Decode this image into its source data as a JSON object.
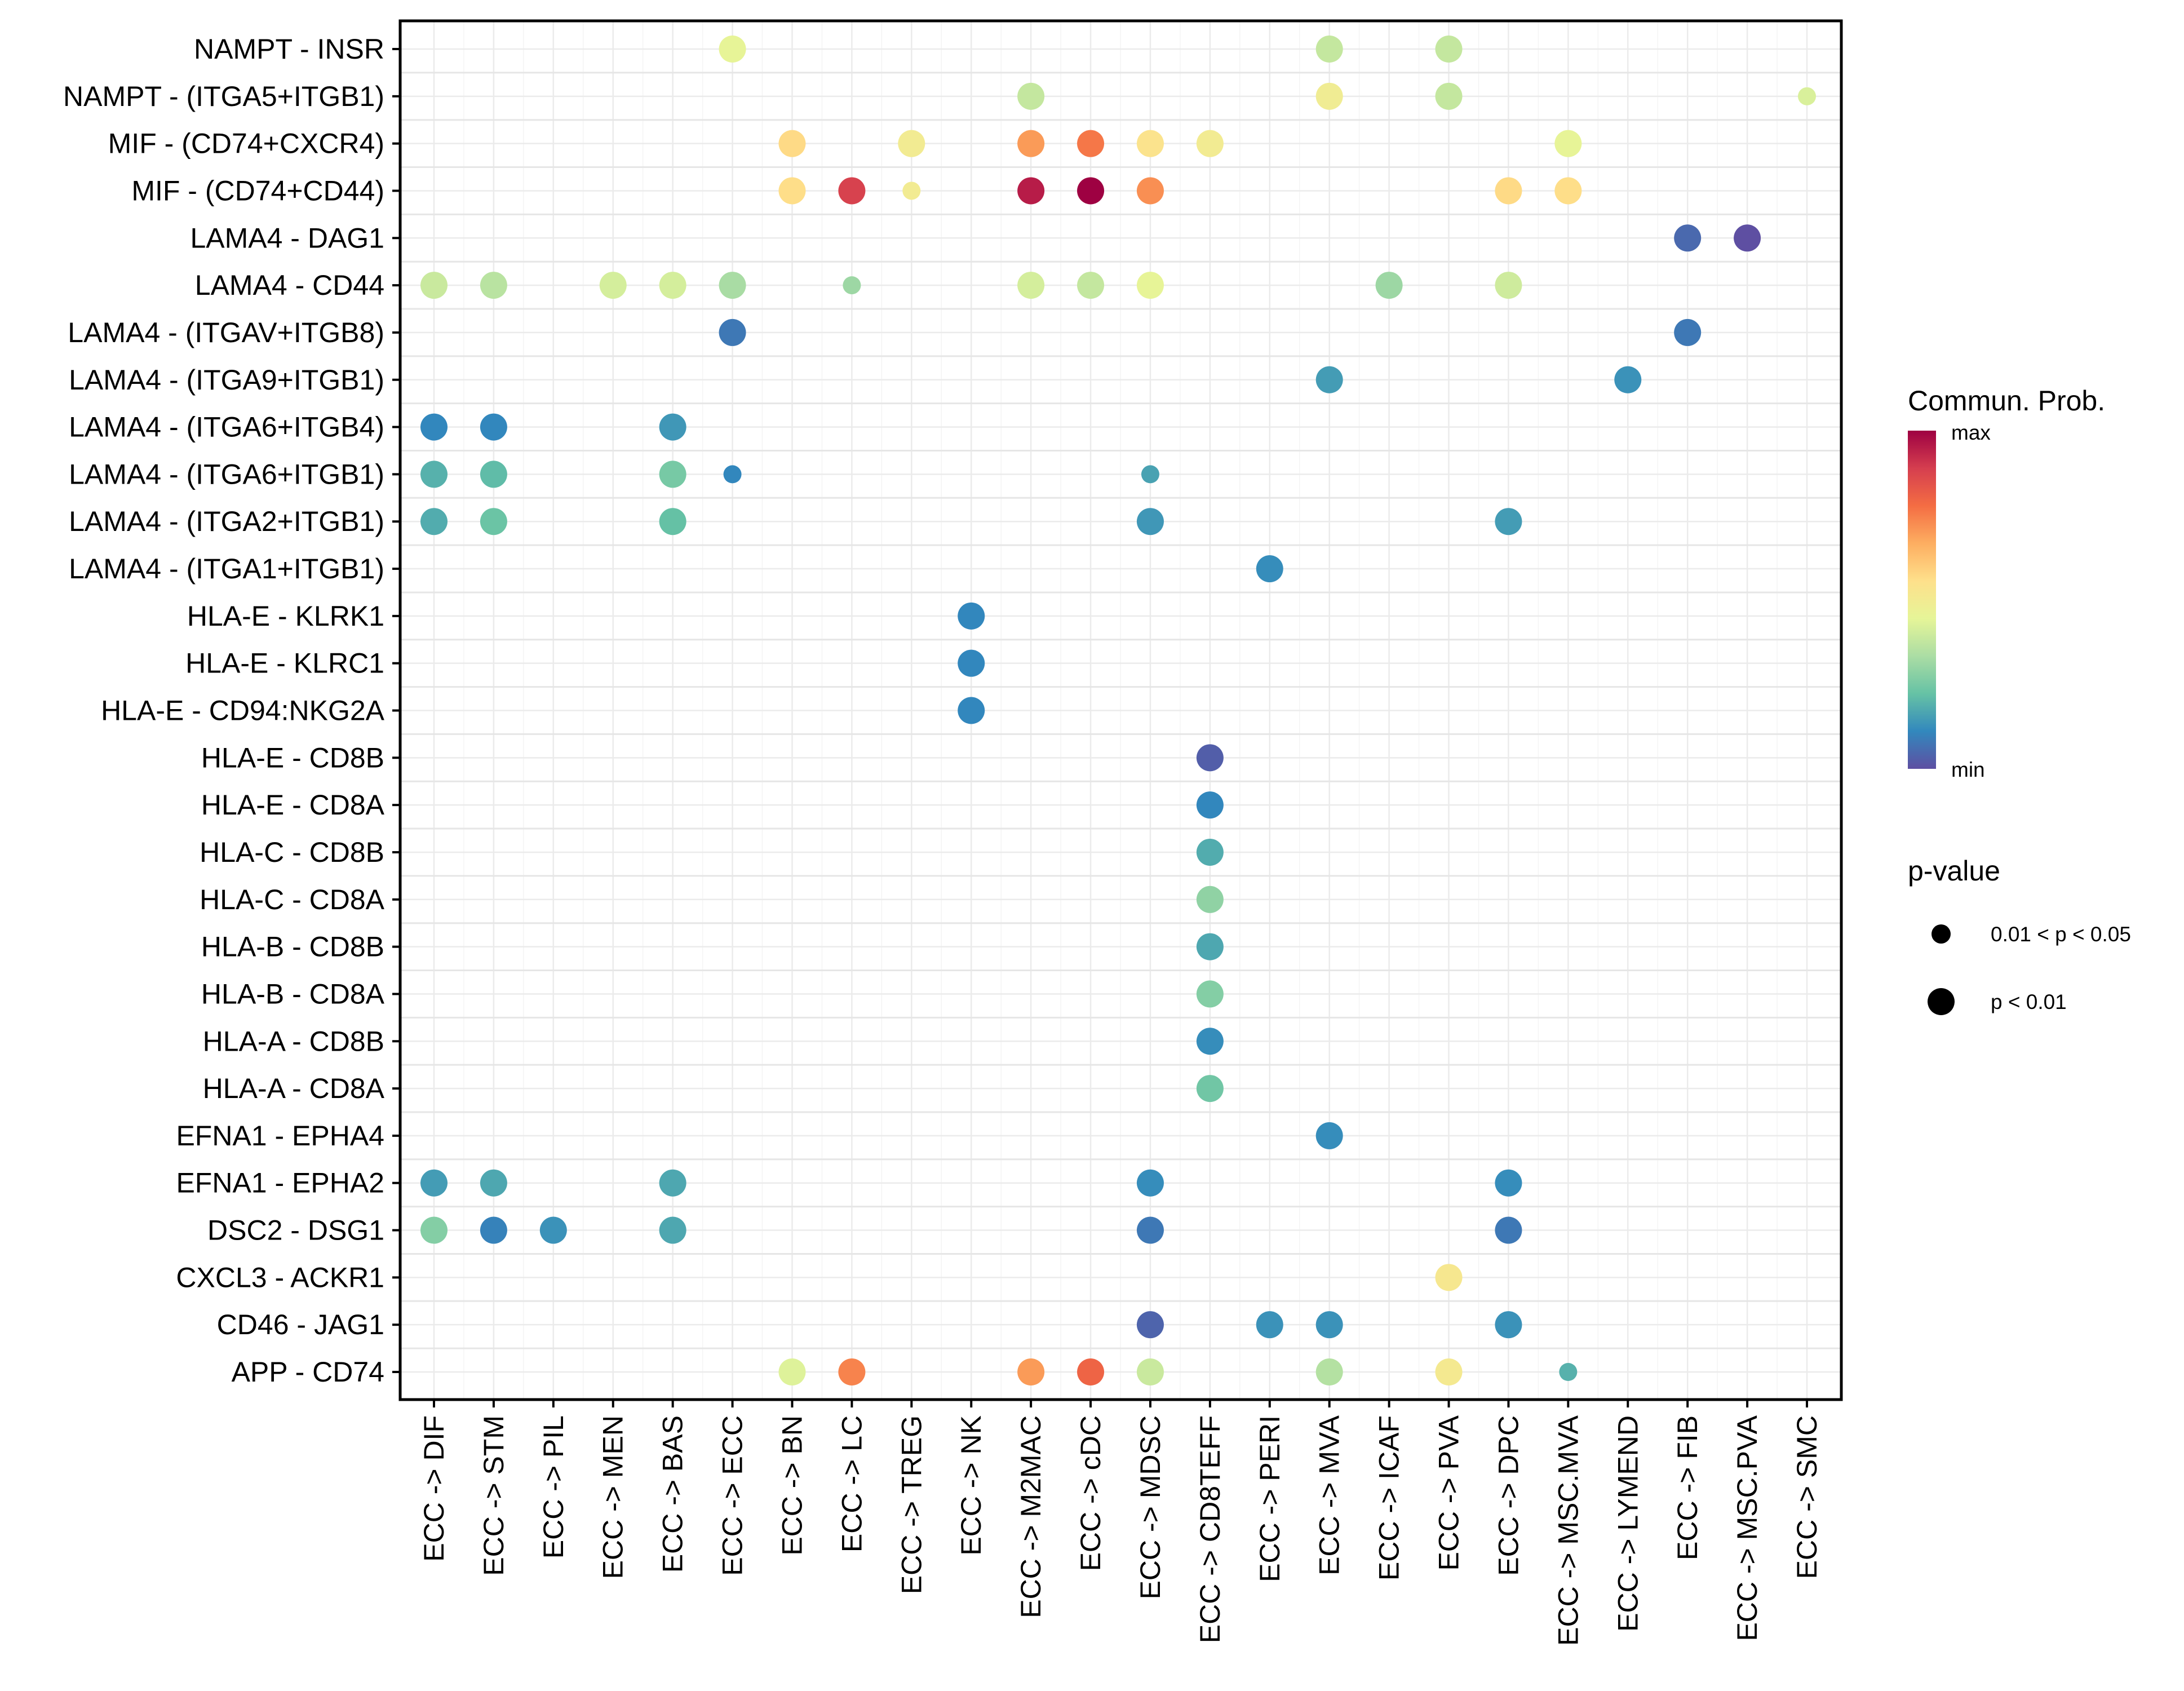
{
  "chart_data": {
    "type": "scatter",
    "subtype": "bubble-dot-plot",
    "title": "",
    "xlabel": "",
    "ylabel": "",
    "grid": true,
    "legend_position": "right",
    "x": [
      "ECC -> DIF",
      "ECC -> STM",
      "ECC -> PIL",
      "ECC -> MEN",
      "ECC -> BAS",
      "ECC -> ECC",
      "ECC -> BN",
      "ECC -> LC",
      "ECC -> TREG",
      "ECC -> NK",
      "ECC -> M2MAC",
      "ECC -> cDC",
      "ECC -> MDSC",
      "ECC -> CD8TEFF",
      "ECC -> PERI",
      "ECC -> MVA",
      "ECC -> ICAF",
      "ECC -> PVA",
      "ECC -> DPC",
      "ECC -> MSC.MVA",
      "ECC -> LYMEND",
      "ECC -> FIB",
      "ECC -> MSC.PVA",
      "ECC -> SMC"
    ],
    "y": [
      "NAMPT - INSR",
      "NAMPT - (ITGA5+ITGB1)",
      "MIF - (CD74+CXCR4)",
      "MIF - (CD74+CD44)",
      "LAMA4 - DAG1",
      "LAMA4 - CD44",
      "LAMA4 - (ITGAV+ITGB8)",
      "LAMA4 - (ITGA9+ITGB1)",
      "LAMA4 - (ITGA6+ITGB4)",
      "LAMA4 - (ITGA6+ITGB1)",
      "LAMA4 - (ITGA2+ITGB1)",
      "LAMA4 - (ITGA1+ITGB1)",
      "HLA-E - KLRK1",
      "HLA-E - KLRC1",
      "HLA-E - CD94:NKG2A",
      "HLA-E - CD8B",
      "HLA-E - CD8A",
      "HLA-C - CD8B",
      "HLA-C - CD8A",
      "HLA-B - CD8B",
      "HLA-B - CD8A",
      "HLA-A - CD8B",
      "HLA-A - CD8A",
      "EFNA1 - EPHA4",
      "EFNA1 - EPHA2",
      "DSC2 - DSG1",
      "CXCL3 - ACKR1",
      "CD46 - JAG1",
      "APP - CD74"
    ],
    "color_scale": {
      "title": "Commun. Prob.",
      "label_max": "max",
      "label_min": "min",
      "palette": [
        "#5E4FA2",
        "#3288BD",
        "#66C2A5",
        "#ABDDA4",
        "#E6F598",
        "#FEE08B",
        "#FDAE61",
        "#F46D43",
        "#D53E4F",
        "#9E0142"
      ]
    },
    "size_legend": {
      "title": "p-value",
      "entries": [
        {
          "key": "small",
          "label": "0.01 < p < 0.05"
        },
        {
          "key": "large",
          "label": "p < 0.01"
        }
      ]
    },
    "points": [
      {
        "x": "ECC -> ECC",
        "y": "NAMPT - INSR",
        "prob": 0.45,
        "p": "large"
      },
      {
        "x": "ECC -> MVA",
        "y": "NAMPT - INSR",
        "prob": 0.38,
        "p": "large"
      },
      {
        "x": "ECC -> PVA",
        "y": "NAMPT - INSR",
        "prob": 0.38,
        "p": "large"
      },
      {
        "x": "ECC -> M2MAC",
        "y": "NAMPT - (ITGA5+ITGB1)",
        "prob": 0.38,
        "p": "large"
      },
      {
        "x": "ECC -> MVA",
        "y": "NAMPT - (ITGA5+ITGB1)",
        "prob": 0.49,
        "p": "large"
      },
      {
        "x": "ECC -> PVA",
        "y": "NAMPT - (ITGA5+ITGB1)",
        "prob": 0.38,
        "p": "large"
      },
      {
        "x": "ECC -> SMC",
        "y": "NAMPT - (ITGA5+ITGB1)",
        "prob": 0.42,
        "p": "small"
      },
      {
        "x": "ECC -> BN",
        "y": "MIF - (CD74+CXCR4)",
        "prob": 0.57,
        "p": "large"
      },
      {
        "x": "ECC -> TREG",
        "y": "MIF - (CD74+CXCR4)",
        "prob": 0.5,
        "p": "large"
      },
      {
        "x": "ECC -> M2MAC",
        "y": "MIF - (CD74+CXCR4)",
        "prob": 0.7,
        "p": "large"
      },
      {
        "x": "ECC -> cDC",
        "y": "MIF - (CD74+CXCR4)",
        "prob": 0.76,
        "p": "large"
      },
      {
        "x": "ECC -> MDSC",
        "y": "MIF - (CD74+CXCR4)",
        "prob": 0.54,
        "p": "large"
      },
      {
        "x": "ECC -> CD8TEFF",
        "y": "MIF - (CD74+CXCR4)",
        "prob": 0.5,
        "p": "large"
      },
      {
        "x": "ECC -> MSC.MVA",
        "y": "MIF - (CD74+CXCR4)",
        "prob": 0.45,
        "p": "large"
      },
      {
        "x": "ECC -> BN",
        "y": "MIF - (CD74+CD44)",
        "prob": 0.56,
        "p": "large"
      },
      {
        "x": "ECC -> LC",
        "y": "MIF - (CD74+CD44)",
        "prob": 0.88,
        "p": "large"
      },
      {
        "x": "ECC -> TREG",
        "y": "MIF - (CD74+CD44)",
        "prob": 0.5,
        "p": "small"
      },
      {
        "x": "ECC -> M2MAC",
        "y": "MIF - (CD74+CD44)",
        "prob": 0.95,
        "p": "large"
      },
      {
        "x": "ECC -> cDC",
        "y": "MIF - (CD74+CD44)",
        "prob": 1.0,
        "p": "large"
      },
      {
        "x": "ECC -> MDSC",
        "y": "MIF - (CD74+CD44)",
        "prob": 0.72,
        "p": "large"
      },
      {
        "x": "ECC -> DPC",
        "y": "MIF - (CD74+CD44)",
        "prob": 0.57,
        "p": "large"
      },
      {
        "x": "ECC -> MSC.MVA",
        "y": "MIF - (CD74+CD44)",
        "prob": 0.56,
        "p": "large"
      },
      {
        "x": "ECC -> FIB",
        "y": "LAMA4 - DAG1",
        "prob": 0.05,
        "p": "large"
      },
      {
        "x": "ECC -> MSC.PVA",
        "y": "LAMA4 - DAG1",
        "prob": 0.0,
        "p": "large"
      },
      {
        "x": "ECC -> DIF",
        "y": "LAMA4 - CD44",
        "prob": 0.39,
        "p": "large"
      },
      {
        "x": "ECC -> STM",
        "y": "LAMA4 - CD44",
        "prob": 0.36,
        "p": "large"
      },
      {
        "x": "ECC -> MEN",
        "y": "LAMA4 - CD44",
        "prob": 0.41,
        "p": "large"
      },
      {
        "x": "ECC -> BAS",
        "y": "LAMA4 - CD44",
        "prob": 0.41,
        "p": "large"
      },
      {
        "x": "ECC -> ECC",
        "y": "LAMA4 - CD44",
        "prob": 0.33,
        "p": "large"
      },
      {
        "x": "ECC -> LC",
        "y": "LAMA4 - CD44",
        "prob": 0.31,
        "p": "small"
      },
      {
        "x": "ECC -> M2MAC",
        "y": "LAMA4 - CD44",
        "prob": 0.41,
        "p": "large"
      },
      {
        "x": "ECC -> cDC",
        "y": "LAMA4 - CD44",
        "prob": 0.38,
        "p": "large"
      },
      {
        "x": "ECC -> MDSC",
        "y": "LAMA4 - CD44",
        "prob": 0.45,
        "p": "large"
      },
      {
        "x": "ECC -> ICAF",
        "y": "LAMA4 - CD44",
        "prob": 0.31,
        "p": "large"
      },
      {
        "x": "ECC -> DPC",
        "y": "LAMA4 - CD44",
        "prob": 0.4,
        "p": "large"
      },
      {
        "x": "ECC -> ECC",
        "y": "LAMA4 - (ITGAV+ITGB8)",
        "prob": 0.08,
        "p": "large"
      },
      {
        "x": "ECC -> FIB",
        "y": "LAMA4 - (ITGAV+ITGB8)",
        "prob": 0.08,
        "p": "large"
      },
      {
        "x": "ECC -> MVA",
        "y": "LAMA4 - (ITGA9+ITGB1)",
        "prob": 0.15,
        "p": "large"
      },
      {
        "x": "ECC -> LYMEND",
        "y": "LAMA4 - (ITGA9+ITGB1)",
        "prob": 0.13,
        "p": "large"
      },
      {
        "x": "ECC -> DIF",
        "y": "LAMA4 - (ITGA6+ITGB4)",
        "prob": 0.11,
        "p": "large"
      },
      {
        "x": "ECC -> STM",
        "y": "LAMA4 - (ITGA6+ITGB4)",
        "prob": 0.11,
        "p": "large"
      },
      {
        "x": "ECC -> BAS",
        "y": "LAMA4 - (ITGA6+ITGB4)",
        "prob": 0.14,
        "p": "large"
      },
      {
        "x": "ECC -> DIF",
        "y": "LAMA4 - (ITGA6+ITGB1)",
        "prob": 0.19,
        "p": "large"
      },
      {
        "x": "ECC -> STM",
        "y": "LAMA4 - (ITGA6+ITGB1)",
        "prob": 0.21,
        "p": "large"
      },
      {
        "x": "ECC -> BAS",
        "y": "LAMA4 - (ITGA6+ITGB1)",
        "prob": 0.25,
        "p": "large"
      },
      {
        "x": "ECC -> ECC",
        "y": "LAMA4 - (ITGA6+ITGB1)",
        "prob": 0.11,
        "p": "small"
      },
      {
        "x": "ECC -> MDSC",
        "y": "LAMA4 - (ITGA6+ITGB1)",
        "prob": 0.16,
        "p": "small"
      },
      {
        "x": "ECC -> DIF",
        "y": "LAMA4 - (ITGA2+ITGB1)",
        "prob": 0.18,
        "p": "large"
      },
      {
        "x": "ECC -> STM",
        "y": "LAMA4 - (ITGA2+ITGB1)",
        "prob": 0.23,
        "p": "large"
      },
      {
        "x": "ECC -> BAS",
        "y": "LAMA4 - (ITGA2+ITGB1)",
        "prob": 0.22,
        "p": "large"
      },
      {
        "x": "ECC -> MDSC",
        "y": "LAMA4 - (ITGA2+ITGB1)",
        "prob": 0.14,
        "p": "large"
      },
      {
        "x": "ECC -> DPC",
        "y": "LAMA4 - (ITGA2+ITGB1)",
        "prob": 0.15,
        "p": "large"
      },
      {
        "x": "ECC -> PERI",
        "y": "LAMA4 - (ITGA1+ITGB1)",
        "prob": 0.12,
        "p": "large"
      },
      {
        "x": "ECC -> NK",
        "y": "HLA-E - KLRK1",
        "prob": 0.11,
        "p": "large"
      },
      {
        "x": "ECC -> NK",
        "y": "HLA-E - KLRC1",
        "prob": 0.11,
        "p": "large"
      },
      {
        "x": "ECC -> NK",
        "y": "HLA-E - CD94:NKG2A",
        "prob": 0.11,
        "p": "large"
      },
      {
        "x": "ECC -> CD8TEFF",
        "y": "HLA-E - CD8B",
        "prob": 0.03,
        "p": "large"
      },
      {
        "x": "ECC -> CD8TEFF",
        "y": "HLA-E - CD8A",
        "prob": 0.11,
        "p": "large"
      },
      {
        "x": "ECC -> CD8TEFF",
        "y": "HLA-C - CD8B",
        "prob": 0.18,
        "p": "large"
      },
      {
        "x": "ECC -> CD8TEFF",
        "y": "HLA-C - CD8A",
        "prob": 0.29,
        "p": "large"
      },
      {
        "x": "ECC -> CD8TEFF",
        "y": "HLA-B - CD8B",
        "prob": 0.17,
        "p": "large"
      },
      {
        "x": "ECC -> CD8TEFF",
        "y": "HLA-B - CD8A",
        "prob": 0.27,
        "p": "large"
      },
      {
        "x": "ECC -> CD8TEFF",
        "y": "HLA-A - CD8B",
        "prob": 0.12,
        "p": "large"
      },
      {
        "x": "ECC -> CD8TEFF",
        "y": "HLA-A - CD8A",
        "prob": 0.24,
        "p": "large"
      },
      {
        "x": "ECC -> MVA",
        "y": "EFNA1 - EPHA4",
        "prob": 0.12,
        "p": "large"
      },
      {
        "x": "ECC -> DIF",
        "y": "EFNA1 - EPHA2",
        "prob": 0.15,
        "p": "large"
      },
      {
        "x": "ECC -> STM",
        "y": "EFNA1 - EPHA2",
        "prob": 0.17,
        "p": "large"
      },
      {
        "x": "ECC -> BAS",
        "y": "EFNA1 - EPHA2",
        "prob": 0.17,
        "p": "large"
      },
      {
        "x": "ECC -> MDSC",
        "y": "EFNA1 - EPHA2",
        "prob": 0.12,
        "p": "large"
      },
      {
        "x": "ECC -> DPC",
        "y": "EFNA1 - EPHA2",
        "prob": 0.12,
        "p": "large"
      },
      {
        "x": "ECC -> DIF",
        "y": "DSC2 - DSG1",
        "prob": 0.27,
        "p": "large"
      },
      {
        "x": "ECC -> STM",
        "y": "DSC2 - DSG1",
        "prob": 0.1,
        "p": "large"
      },
      {
        "x": "ECC -> PIL",
        "y": "DSC2 - DSG1",
        "prob": 0.13,
        "p": "large"
      },
      {
        "x": "ECC -> BAS",
        "y": "DSC2 - DSG1",
        "prob": 0.17,
        "p": "large"
      },
      {
        "x": "ECC -> MDSC",
        "y": "DSC2 - DSG1",
        "prob": 0.08,
        "p": "large"
      },
      {
        "x": "ECC -> DPC",
        "y": "DSC2 - DSG1",
        "prob": 0.08,
        "p": "large"
      },
      {
        "x": "ECC -> PVA",
        "y": "CXCL3 - ACKR1",
        "prob": 0.52,
        "p": "large"
      },
      {
        "x": "ECC -> MDSC",
        "y": "CD46 - JAG1",
        "prob": 0.04,
        "p": "large"
      },
      {
        "x": "ECC -> PERI",
        "y": "CD46 - JAG1",
        "prob": 0.13,
        "p": "large"
      },
      {
        "x": "ECC -> MVA",
        "y": "CD46 - JAG1",
        "prob": 0.13,
        "p": "large"
      },
      {
        "x": "ECC -> DPC",
        "y": "CD46 - JAG1",
        "prob": 0.13,
        "p": "large"
      },
      {
        "x": "ECC -> BN",
        "y": "APP - CD74",
        "prob": 0.43,
        "p": "large"
      },
      {
        "x": "ECC -> LC",
        "y": "APP - CD74",
        "prob": 0.74,
        "p": "large"
      },
      {
        "x": "ECC -> M2MAC",
        "y": "APP - CD74",
        "prob": 0.7,
        "p": "large"
      },
      {
        "x": "ECC -> cDC",
        "y": "APP - CD74",
        "prob": 0.8,
        "p": "large"
      },
      {
        "x": "ECC -> MDSC",
        "y": "APP - CD74",
        "prob": 0.39,
        "p": "large"
      },
      {
        "x": "ECC -> MVA",
        "y": "APP - CD74",
        "prob": 0.35,
        "p": "large"
      },
      {
        "x": "ECC -> PVA",
        "y": "APP - CD74",
        "prob": 0.51,
        "p": "large"
      },
      {
        "x": "ECC -> MSC.MVA",
        "y": "APP - CD74",
        "prob": 0.19,
        "p": "small"
      }
    ]
  }
}
